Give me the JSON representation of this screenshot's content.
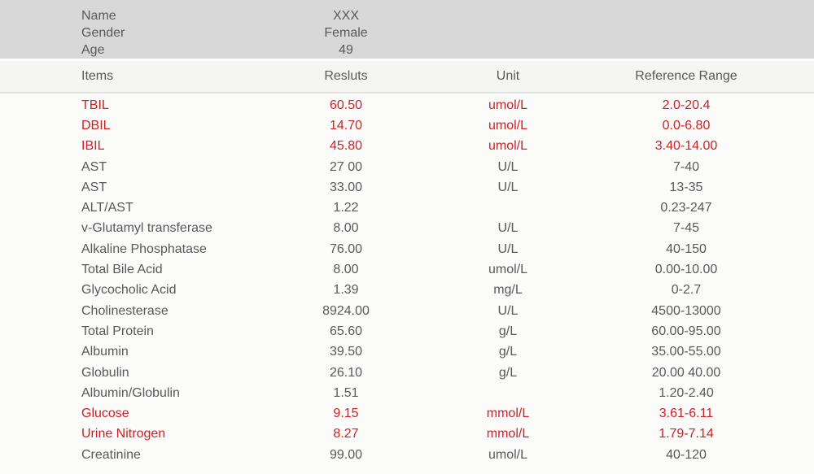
{
  "colors": {
    "abnormal_text": "#cc2127",
    "normal_text": "#59595b",
    "patient_band_bg": "#d8d8d8",
    "header_band_bg": "#f5f5f4",
    "body_bg": "#fbfbfa"
  },
  "patient": {
    "fields": [
      {
        "label": "Name",
        "value": "XXX"
      },
      {
        "label": "Gender",
        "value": "Female"
      },
      {
        "label": "Age",
        "value": "49"
      }
    ]
  },
  "table": {
    "headers": {
      "item": "Items",
      "result": "Resluts",
      "unit": "Unit",
      "range": "Reference Range"
    },
    "rows": [
      {
        "item": "TBIL",
        "result": "60.50",
        "unit": "umol/L",
        "range": "2.0-20.4",
        "abnormal": true
      },
      {
        "item": "DBIL",
        "result": "14.70",
        "unit": "umol/L",
        "range": "0.0-6.80",
        "abnormal": true
      },
      {
        "item": "IBIL",
        "result": "45.80",
        "unit": "umol/L",
        "range": "3.40-14.00",
        "abnormal": true
      },
      {
        "item": "AST",
        "result": "27 00",
        "unit": "U/L",
        "range": "7-40",
        "abnormal": false
      },
      {
        "item": "AST",
        "result": "33.00",
        "unit": "U/L",
        "range": "13-35",
        "abnormal": false
      },
      {
        "item": "ALT/AST",
        "result": "1.22",
        "unit": "",
        "range": "0.23-247",
        "abnormal": false
      },
      {
        "item": "v-Glutamyl transferase",
        "result": "8.00",
        "unit": "U/L",
        "range": "7-45",
        "abnormal": false
      },
      {
        "item": "Alkaline Phosphatase",
        "result": "76.00",
        "unit": "U/L",
        "range": "40-150",
        "abnormal": false
      },
      {
        "item": "Total Bile Acid",
        "result": "8.00",
        "unit": "umol/L",
        "range": "0.00-10.00",
        "abnormal": false
      },
      {
        "item": "Glycocholic Acid",
        "result": "1.39",
        "unit": "mg/L",
        "range": "0-2.7",
        "abnormal": false
      },
      {
        "item": "Cholinesterase",
        "result": "8924.00",
        "unit": "U/L",
        "range": "4500-13000",
        "abnormal": false
      },
      {
        "item": "Total Protein",
        "result": "65.60",
        "unit": "g/L",
        "range": "60.00-95.00",
        "abnormal": false
      },
      {
        "item": "Albumin",
        "result": "39.50",
        "unit": "g/L",
        "range": "35.00-55.00",
        "abnormal": false
      },
      {
        "item": "Globulin",
        "result": "26.10",
        "unit": "g/L",
        "range": "20.00 40.00",
        "abnormal": false
      },
      {
        "item": "Albumin/Globulin",
        "result": "1.51",
        "unit": "",
        "range": "1.20-2.40",
        "abnormal": false
      },
      {
        "item": "Glucose",
        "result": "9.15",
        "unit": "mmol/L",
        "range": "3.61-6.11",
        "abnormal": true
      },
      {
        "item": "Urine Nitrogen",
        "result": "8.27",
        "unit": "mmol/L",
        "range": "1.79-7.14",
        "abnormal": true
      },
      {
        "item": "Creatinine",
        "result": "99.00",
        "unit": "umol/L",
        "range": "40-120",
        "abnormal": false
      }
    ]
  }
}
